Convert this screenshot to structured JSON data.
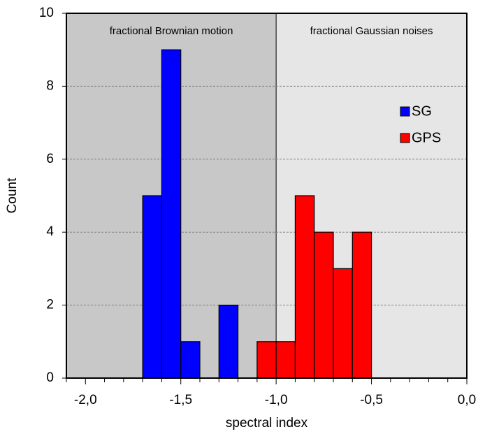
{
  "chart_data": {
    "type": "histogram",
    "xlabel": "spectral index",
    "ylabel": "Count",
    "xlim": [
      -2.1,
      0
    ],
    "ylim": [
      0,
      10
    ],
    "xticks": [
      {
        "value": -2,
        "label": "-2,0"
      },
      {
        "value": -1.5,
        "label": "-1,5"
      },
      {
        "value": -1,
        "label": "-1,0"
      },
      {
        "value": -0.5,
        "label": "-0,5"
      },
      {
        "value": 0,
        "label": "0,0"
      }
    ],
    "xminorticks": [
      -2.1,
      -1.9,
      -1.8,
      -1.7,
      -1.6,
      -1.4,
      -1.3,
      -1.2,
      -1.1,
      -0.9,
      -0.8,
      -0.7,
      -0.6,
      -0.4,
      -0.3,
      -0.2,
      -0.1
    ],
    "yticks": [
      0,
      2,
      4,
      6,
      8,
      10
    ],
    "grid": true,
    "legend": "upper right",
    "regions": [
      {
        "label": "fractional Brownian motion",
        "xlim": [
          -2.1,
          -1
        ],
        "color": "#c8c8c8"
      },
      {
        "label": "fractional Gaussian noises",
        "xlim": [
          -1,
          0
        ],
        "color": "#e6e6e6"
      }
    ],
    "series": [
      {
        "name": "SG",
        "color": "#0000ff",
        "bins": [
          -1.7,
          -1.6,
          -1.5,
          -1.4,
          -1.3,
          -1.2
        ],
        "values": [
          5,
          9,
          1,
          0,
          2
        ]
      },
      {
        "name": "GPS",
        "color": "#ff0000",
        "bins": [
          -1.1,
          -1.0,
          -0.9,
          -0.8,
          -0.7,
          -0.6,
          -0.5
        ],
        "values": [
          1,
          1,
          5,
          4,
          3,
          4
        ]
      }
    ]
  }
}
